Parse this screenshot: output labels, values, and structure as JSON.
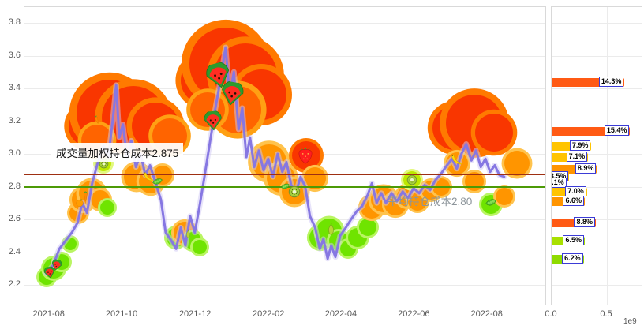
{
  "chart_data": [
    {
      "type": "line",
      "title": "",
      "xlabel": "",
      "ylabel": "",
      "ylim": [
        2.2,
        3.8
      ],
      "y_ticks": [
        3.8,
        3.6,
        3.4,
        3.2,
        3.0,
        2.8,
        2.6,
        2.4,
        2.2
      ],
      "x_ticks": [
        {
          "label": "2021-08",
          "f": 0.048
        },
        {
          "label": "2021-10",
          "f": 0.188
        },
        {
          "label": "2021-12",
          "f": 0.329
        },
        {
          "label": "2022-02",
          "f": 0.47
        },
        {
          "label": "2022-04",
          "f": 0.609
        },
        {
          "label": "2022-06",
          "f": 0.749
        },
        {
          "label": "2022-08",
          "f": 0.889
        }
      ],
      "series": [
        {
          "name": "price",
          "color": "#8677e2",
          "points": [
            [
              0.042,
              2.27
            ],
            [
              0.055,
              2.32
            ],
            [
              0.067,
              2.42
            ],
            [
              0.079,
              2.47
            ],
            [
              0.091,
              2.52
            ],
            [
              0.102,
              2.58
            ],
            [
              0.111,
              2.7
            ],
            [
              0.12,
              2.64
            ],
            [
              0.13,
              2.82
            ],
            [
              0.141,
              2.95
            ],
            [
              0.152,
              3.05
            ],
            [
              0.161,
              2.98
            ],
            [
              0.17,
              3.22
            ],
            [
              0.176,
              3.42
            ],
            [
              0.182,
              3.1
            ],
            [
              0.189,
              3.18
            ],
            [
              0.197,
              2.98
            ],
            [
              0.205,
              3.08
            ],
            [
              0.214,
              2.92
            ],
            [
              0.223,
              3.0
            ],
            [
              0.232,
              2.87
            ],
            [
              0.241,
              2.93
            ],
            [
              0.252,
              2.82
            ],
            [
              0.262,
              2.72
            ],
            [
              0.271,
              2.52
            ],
            [
              0.282,
              2.47
            ],
            [
              0.291,
              2.42
            ],
            [
              0.3,
              2.55
            ],
            [
              0.309,
              2.44
            ],
            [
              0.318,
              2.62
            ],
            [
              0.327,
              2.52
            ],
            [
              0.336,
              2.68
            ],
            [
              0.345,
              2.85
            ],
            [
              0.355,
              3.05
            ],
            [
              0.365,
              3.25
            ],
            [
              0.376,
              3.45
            ],
            [
              0.386,
              3.65
            ],
            [
              0.394,
              3.35
            ],
            [
              0.402,
              3.5
            ],
            [
              0.411,
              3.15
            ],
            [
              0.418,
              3.28
            ],
            [
              0.426,
              2.98
            ],
            [
              0.433,
              3.1
            ],
            [
              0.441,
              2.92
            ],
            [
              0.45,
              3.02
            ],
            [
              0.459,
              2.9
            ],
            [
              0.468,
              2.97
            ],
            [
              0.477,
              2.86
            ],
            [
              0.486,
              3.0
            ],
            [
              0.495,
              2.89
            ],
            [
              0.503,
              2.95
            ],
            [
              0.512,
              2.81
            ],
            [
              0.521,
              2.76
            ],
            [
              0.53,
              2.86
            ],
            [
              0.539,
              2.8
            ],
            [
              0.548,
              2.62
            ],
            [
              0.558,
              2.55
            ],
            [
              0.567,
              2.42
            ],
            [
              0.574,
              2.48
            ],
            [
              0.582,
              2.36
            ],
            [
              0.589,
              2.44
            ],
            [
              0.597,
              2.37
            ],
            [
              0.606,
              2.5
            ],
            [
              0.617,
              2.55
            ],
            [
              0.627,
              2.6
            ],
            [
              0.638,
              2.65
            ],
            [
              0.648,
              2.68
            ],
            [
              0.659,
              2.75
            ],
            [
              0.667,
              2.82
            ],
            [
              0.676,
              2.7
            ],
            [
              0.685,
              2.76
            ],
            [
              0.694,
              2.7
            ],
            [
              0.705,
              2.76
            ],
            [
              0.715,
              2.71
            ],
            [
              0.726,
              2.77
            ],
            [
              0.736,
              2.73
            ],
            [
              0.747,
              2.79
            ],
            [
              0.758,
              2.76
            ],
            [
              0.768,
              2.81
            ],
            [
              0.779,
              2.78
            ],
            [
              0.789,
              2.84
            ],
            [
              0.8,
              2.88
            ],
            [
              0.811,
              2.93
            ],
            [
              0.821,
              2.97
            ],
            [
              0.83,
              2.91
            ],
            [
              0.839,
              3.0
            ],
            [
              0.848,
              3.06
            ],
            [
              0.858,
              2.96
            ],
            [
              0.867,
              3.02
            ],
            [
              0.876,
              2.92
            ],
            [
              0.885,
              2.97
            ],
            [
              0.894,
              2.89
            ],
            [
              0.903,
              2.93
            ],
            [
              0.912,
              2.87
            ],
            [
              0.921,
              2.86
            ]
          ]
        }
      ],
      "hlines": [
        {
          "name": "vwap-line",
          "price": 2.875,
          "color": "#9e2f12",
          "label": "成交量加权持仓成本2.875"
        },
        {
          "name": "avg-cost-line",
          "price": 2.8,
          "color": "#4c9a06",
          "label": "平均持仓成本2.80"
        }
      ],
      "bubble_colors": {
        "red": {
          "fill": "#f93600",
          "halo": "#ff7a00"
        },
        "orangered": {
          "fill": "#ff6400",
          "halo": "#ffa013"
        },
        "orange": {
          "fill": "#ff9500",
          "halo": "#ffc34d"
        },
        "green": {
          "fill": "#6fe400",
          "halo": "#b9f562"
        },
        "yellowgreen": {
          "fill": "#bde800",
          "halo": "#e3f87e"
        }
      },
      "bubbles": [
        [
          0.042,
          2.25,
          10,
          "green"
        ],
        [
          0.056,
          2.3,
          13,
          "green"
        ],
        [
          0.071,
          2.34,
          10,
          "green"
        ],
        [
          0.088,
          2.45,
          8,
          "green"
        ],
        [
          0.103,
          2.64,
          11,
          "orange"
        ],
        [
          0.112,
          2.72,
          14,
          "orange"
        ],
        [
          0.129,
          2.76,
          16,
          "orange"
        ],
        [
          0.145,
          2.72,
          12,
          "orange"
        ],
        [
          0.159,
          2.67,
          9,
          "green"
        ],
        [
          0.152,
          2.94,
          10,
          "yellowgreen"
        ],
        [
          0.124,
          3.17,
          26,
          "red"
        ],
        [
          0.164,
          3.25,
          42,
          "red"
        ],
        [
          0.209,
          3.22,
          40,
          "red"
        ],
        [
          0.252,
          3.17,
          30,
          "red"
        ],
        [
          0.279,
          3.11,
          22,
          "orangered"
        ],
        [
          0.139,
          3.08,
          20,
          "orangered"
        ],
        [
          0.215,
          2.86,
          16,
          "orange"
        ],
        [
          0.242,
          2.83,
          15,
          "orange"
        ],
        [
          0.265,
          2.87,
          12,
          "orange"
        ],
        [
          0.291,
          2.49,
          12,
          "green"
        ],
        [
          0.308,
          2.52,
          14,
          "orange"
        ],
        [
          0.323,
          2.47,
          11,
          "green"
        ],
        [
          0.336,
          2.43,
          9,
          "green"
        ],
        [
          0.345,
          3.45,
          30,
          "red"
        ],
        [
          0.386,
          3.55,
          46,
          "red"
        ],
        [
          0.424,
          3.48,
          40,
          "red"
        ],
        [
          0.455,
          3.36,
          32,
          "red"
        ],
        [
          0.409,
          3.27,
          30,
          "orangered"
        ],
        [
          0.352,
          3.27,
          22,
          "orangered"
        ],
        [
          0.47,
          2.95,
          22,
          "orange"
        ],
        [
          0.492,
          2.85,
          18,
          "orange"
        ],
        [
          0.518,
          2.77,
          16,
          "orange"
        ],
        [
          0.541,
          2.99,
          18,
          "red"
        ],
        [
          0.558,
          2.85,
          14,
          "orange"
        ],
        [
          0.568,
          2.49,
          14,
          "green"
        ],
        [
          0.585,
          2.53,
          16,
          "green"
        ],
        [
          0.603,
          2.47,
          12,
          "green"
        ],
        [
          0.621,
          2.42,
          10,
          "green"
        ],
        [
          0.639,
          2.49,
          12,
          "green"
        ],
        [
          0.659,
          2.55,
          11,
          "green"
        ],
        [
          0.667,
          2.67,
          14,
          "orange"
        ],
        [
          0.689,
          2.72,
          16,
          "orange"
        ],
        [
          0.712,
          2.69,
          14,
          "orange"
        ],
        [
          0.735,
          2.74,
          13,
          "orange"
        ],
        [
          0.755,
          2.71,
          12,
          "orange"
        ],
        [
          0.744,
          2.84,
          11,
          "yellowgreen"
        ],
        [
          0.78,
          2.78,
          12,
          "orange"
        ],
        [
          0.8,
          2.8,
          11,
          "orange"
        ],
        [
          0.826,
          3.16,
          28,
          "red"
        ],
        [
          0.864,
          3.19,
          36,
          "red"
        ],
        [
          0.902,
          3.13,
          24,
          "red"
        ],
        [
          0.83,
          2.94,
          14,
          "orange"
        ],
        [
          0.864,
          2.83,
          12,
          "orange"
        ],
        [
          0.895,
          2.69,
          12,
          "green"
        ],
        [
          0.921,
          2.74,
          11,
          "orange"
        ],
        [
          0.945,
          2.94,
          16,
          "orange"
        ]
      ],
      "fruits": [
        [
          "watermelon",
          0.048,
          2.27,
          16,
          -10
        ],
        [
          "watermelon",
          0.062,
          2.32,
          15,
          15
        ],
        [
          "orange",
          0.106,
          2.7,
          12,
          0
        ],
        [
          "carrot",
          0.118,
          2.74,
          15,
          0
        ],
        [
          "carrot",
          0.138,
          3.21,
          13,
          -20
        ],
        [
          "kiwi",
          0.152,
          2.94,
          13,
          0
        ],
        [
          "banana",
          0.238,
          2.86,
          17,
          0
        ],
        [
          "peas",
          0.256,
          2.83,
          15,
          0
        ],
        [
          "pear",
          0.314,
          2.51,
          13,
          0
        ],
        [
          "watermelon",
          0.373,
          3.47,
          34,
          -15
        ],
        [
          "watermelon",
          0.398,
          3.36,
          32,
          10
        ],
        [
          "watermelon",
          0.362,
          3.2,
          26,
          -5
        ],
        [
          "peas",
          0.5,
          2.8,
          13,
          0
        ],
        [
          "kiwi",
          0.518,
          2.77,
          16,
          0
        ],
        [
          "strawberry",
          0.539,
          2.99,
          26,
          0
        ],
        [
          "pear",
          0.588,
          2.54,
          19,
          0
        ],
        [
          "kiwi",
          0.744,
          2.84,
          14,
          0
        ],
        [
          "banana",
          0.83,
          2.96,
          18,
          0
        ],
        [
          "peas",
          0.895,
          2.7,
          16,
          0
        ]
      ]
    },
    {
      "type": "bar",
      "orientation": "horizontal",
      "title": "",
      "unit": "1e9",
      "xlim": [
        0,
        0.8
      ],
      "x_ticks": [
        {
          "label": "0.0",
          "v": 0
        },
        {
          "label": "0.5",
          "v": 0.5
        }
      ],
      "bars": [
        {
          "price": 3.44,
          "value": 0.66,
          "pct": "14.3%",
          "color": "#ff5a14"
        },
        {
          "price": 3.14,
          "value": 0.71,
          "pct": "15.4%",
          "color": "#ff5a14"
        },
        {
          "price": 3.05,
          "value": 0.36,
          "pct": "7.9%",
          "color": "#ffc400"
        },
        {
          "price": 2.98,
          "value": 0.33,
          "pct": "7.1%",
          "color": "#ffc400"
        },
        {
          "price": 2.91,
          "value": 0.41,
          "pct": "8.9%",
          "color": "#ff9400"
        },
        {
          "price": 2.86,
          "value": 0.16,
          "pct": "3.5%",
          "color": "#ffc400"
        },
        {
          "price": 2.82,
          "value": 0.14,
          "pct": "3.1%",
          "color": "#ffd800"
        },
        {
          "price": 2.77,
          "value": 0.32,
          "pct": "7.0%",
          "color": "#ffc400"
        },
        {
          "price": 2.71,
          "value": 0.3,
          "pct": "6.6%",
          "color": "#ff9400"
        },
        {
          "price": 2.58,
          "value": 0.4,
          "pct": "8.8%",
          "color": "#ff5a14"
        },
        {
          "price": 2.47,
          "value": 0.3,
          "pct": "6.5%",
          "color": "#a8e000"
        },
        {
          "price": 2.36,
          "value": 0.29,
          "pct": "6.2%",
          "color": "#8fdb00"
        }
      ]
    }
  ]
}
